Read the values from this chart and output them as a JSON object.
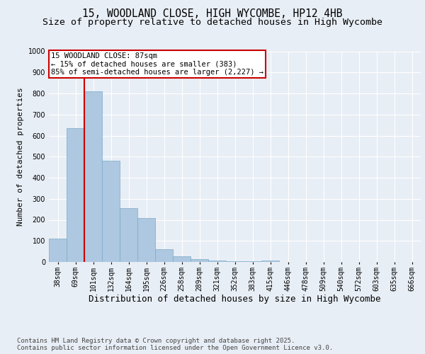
{
  "title_line1": "15, WOODLAND CLOSE, HIGH WYCOMBE, HP12 4HB",
  "title_line2": "Size of property relative to detached houses in High Wycombe",
  "xlabel": "Distribution of detached houses by size in High Wycombe",
  "ylabel": "Number of detached properties",
  "footer_line1": "Contains HM Land Registry data © Crown copyright and database right 2025.",
  "footer_line2": "Contains public sector information licensed under the Open Government Licence v3.0.",
  "categories": [
    "38sqm",
    "69sqm",
    "101sqm",
    "132sqm",
    "164sqm",
    "195sqm",
    "226sqm",
    "258sqm",
    "289sqm",
    "321sqm",
    "352sqm",
    "383sqm",
    "415sqm",
    "446sqm",
    "478sqm",
    "509sqm",
    "540sqm",
    "572sqm",
    "603sqm",
    "635sqm",
    "666sqm"
  ],
  "values": [
    110,
    635,
    810,
    480,
    255,
    210,
    60,
    27,
    13,
    8,
    5,
    4,
    8,
    0,
    0,
    0,
    0,
    0,
    0,
    0,
    0
  ],
  "bar_color": "#adc8e0",
  "bar_edge_color": "#7aaac8",
  "vline_x": 1.5,
  "vline_color": "#cc0000",
  "annotation_text": "15 WOODLAND CLOSE: 87sqm\n← 15% of detached houses are smaller (383)\n85% of semi-detached houses are larger (2,227) →",
  "annotation_box_color": "#ffffff",
  "annotation_box_edge": "#cc0000",
  "ylim": [
    0,
    1000
  ],
  "yticks": [
    0,
    100,
    200,
    300,
    400,
    500,
    600,
    700,
    800,
    900,
    1000
  ],
  "background_color": "#e8eef5",
  "plot_bg_color": "#e8eef5",
  "grid_color": "#ffffff",
  "title_fontsize": 10.5,
  "subtitle_fontsize": 9.5,
  "xlabel_fontsize": 9,
  "ylabel_fontsize": 8,
  "tick_fontsize": 7,
  "footer_fontsize": 6.5,
  "ann_fontsize": 7.5
}
